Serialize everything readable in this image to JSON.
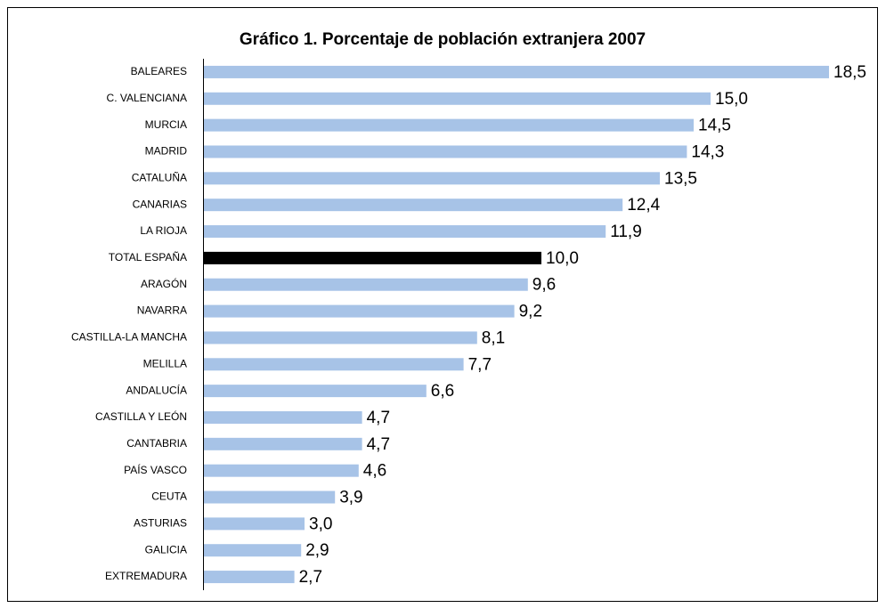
{
  "chart_data": {
    "type": "bar",
    "orientation": "horizontal",
    "title": "Gráfico 1. Porcentaje de población extranjera 2007",
    "categories": [
      "BALEARES",
      "C. VALENCIANA",
      "MURCIA",
      "MADRID",
      "CATALUÑA",
      "CANARIAS",
      "LA RIOJA",
      "TOTAL ESPAÑA",
      "ARAGÓN",
      "NAVARRA",
      "CASTILLA-LA MANCHA",
      "MELILLA",
      "ANDALUCÍA",
      "CASTILLA Y LEÓN",
      "CANTABRIA",
      "PAÍS VASCO",
      "CEUTA",
      "ASTURIAS",
      "GALICIA",
      "EXTREMADURA"
    ],
    "values": [
      18.5,
      15.0,
      14.5,
      14.3,
      13.5,
      12.4,
      11.9,
      10.0,
      9.6,
      9.2,
      8.1,
      7.7,
      6.6,
      4.7,
      4.7,
      4.6,
      3.9,
      3.0,
      2.9,
      2.7
    ],
    "value_labels": [
      "18,5",
      "15,0",
      "14,5",
      "14,3",
      "13,5",
      "12,4",
      "11,9",
      "10,0",
      "9,6",
      "9,2",
      "8,1",
      "7,7",
      "6,6",
      "4,7",
      "4,7",
      "4,6",
      "3,9",
      "3,0",
      "2,9",
      "2,7"
    ],
    "colors": [
      "#a7c3e7",
      "#a7c3e7",
      "#a7c3e7",
      "#a7c3e7",
      "#a7c3e7",
      "#a7c3e7",
      "#a7c3e7",
      "#000000",
      "#a7c3e7",
      "#a7c3e7",
      "#a7c3e7",
      "#a7c3e7",
      "#a7c3e7",
      "#a7c3e7",
      "#a7c3e7",
      "#a7c3e7",
      "#a7c3e7",
      "#a7c3e7",
      "#a7c3e7",
      "#a7c3e7"
    ],
    "xlim": [
      0,
      20
    ]
  }
}
